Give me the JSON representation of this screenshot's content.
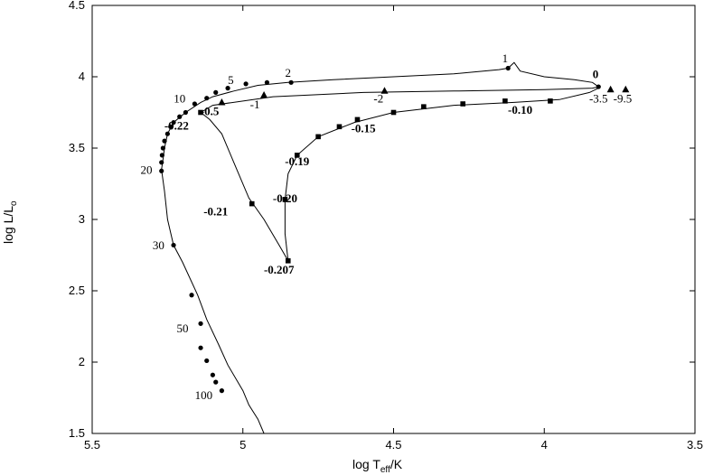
{
  "chart_data": {
    "type": "line",
    "title": "",
    "xlabel": {
      "main": "log T",
      "sub": "eff",
      "tail": "/K"
    },
    "ylabel": {
      "main": "log L/L",
      "sub": "o"
    },
    "xlim": [
      5.5,
      3.5
    ],
    "ylim": [
      1.5,
      4.5
    ],
    "x_reversed": true,
    "grid": false,
    "x_ticks": [
      {
        "value": 5.5,
        "label": "5.5"
      },
      {
        "value": 5.0,
        "label": "5"
      },
      {
        "value": 4.5,
        "label": "4.5"
      },
      {
        "value": 4.0,
        "label": "4"
      },
      {
        "value": 3.5,
        "label": "3.5"
      }
    ],
    "y_ticks": [
      {
        "value": 1.5,
        "label": "1.5"
      },
      {
        "value": 2.0,
        "label": "2"
      },
      {
        "value": 2.5,
        "label": "2.5"
      },
      {
        "value": 3.0,
        "label": "3"
      },
      {
        "value": 3.5,
        "label": "3.5"
      },
      {
        "value": 4.0,
        "label": "4"
      },
      {
        "value": 4.5,
        "label": "4.5"
      }
    ],
    "curves": [
      {
        "id": "main-track",
        "points": [
          [
            4.93,
            1.5
          ],
          [
            4.95,
            1.6
          ],
          [
            4.98,
            1.7
          ],
          [
            5.0,
            1.8
          ],
          [
            5.05,
            1.98
          ],
          [
            5.08,
            2.12
          ],
          [
            5.12,
            2.3
          ],
          [
            5.15,
            2.47
          ],
          [
            5.2,
            2.7
          ],
          [
            5.23,
            2.82
          ],
          [
            5.25,
            3.0
          ],
          [
            5.26,
            3.2
          ],
          [
            5.27,
            3.35
          ],
          [
            5.265,
            3.42
          ],
          [
            5.26,
            3.5
          ],
          [
            5.25,
            3.6
          ],
          [
            5.23,
            3.68
          ],
          [
            5.19,
            3.75
          ],
          [
            5.14,
            3.82
          ],
          [
            5.1,
            3.86
          ],
          [
            5.03,
            3.9
          ],
          [
            4.95,
            3.94
          ],
          [
            4.85,
            3.96
          ],
          [
            4.7,
            3.98
          ],
          [
            4.5,
            4.0
          ],
          [
            4.3,
            4.02
          ],
          [
            4.15,
            4.05
          ],
          [
            4.12,
            4.06
          ],
          [
            4.1,
            4.1
          ],
          [
            4.08,
            4.04
          ],
          [
            4.0,
            4.0
          ],
          [
            3.9,
            3.98
          ],
          [
            3.84,
            3.96
          ],
          [
            3.82,
            3.93
          ],
          [
            3.84,
            3.92
          ],
          [
            4.0,
            3.91
          ],
          [
            4.3,
            3.9
          ],
          [
            4.6,
            3.89
          ],
          [
            4.9,
            3.86
          ],
          [
            5.1,
            3.8
          ],
          [
            5.14,
            3.75
          ],
          [
            5.11,
            3.7
          ],
          [
            5.07,
            3.6
          ],
          [
            5.03,
            3.4
          ],
          [
            4.98,
            3.15
          ],
          [
            4.93,
            3.0
          ],
          [
            4.88,
            2.82
          ],
          [
            4.85,
            2.71
          ],
          [
            4.86,
            2.9
          ],
          [
            4.86,
            3.14
          ],
          [
            4.85,
            3.32
          ],
          [
            4.82,
            3.45
          ],
          [
            4.75,
            3.58
          ],
          [
            4.63,
            3.68
          ],
          [
            4.5,
            3.75
          ],
          [
            4.3,
            3.8
          ],
          [
            4.1,
            3.82
          ],
          [
            3.95,
            3.84
          ],
          [
            3.85,
            3.89
          ],
          [
            3.82,
            3.92
          ]
        ]
      }
    ],
    "series": [
      {
        "name": "",
        "marker": "circle",
        "points": [
          [
            5.07,
            1.8
          ],
          [
            5.09,
            1.86
          ],
          [
            5.1,
            1.91
          ],
          [
            5.12,
            2.01
          ],
          [
            5.14,
            2.1
          ],
          [
            5.14,
            2.27
          ],
          [
            5.17,
            2.47
          ],
          [
            5.23,
            2.82
          ],
          [
            5.27,
            3.34
          ],
          [
            5.27,
            3.4
          ],
          [
            5.268,
            3.45
          ],
          [
            5.265,
            3.5
          ],
          [
            5.26,
            3.55
          ],
          [
            5.25,
            3.6
          ],
          [
            5.24,
            3.65
          ],
          [
            5.23,
            3.68
          ],
          [
            5.21,
            3.72
          ],
          [
            5.19,
            3.75
          ],
          [
            5.16,
            3.81
          ],
          [
            5.12,
            3.85
          ],
          [
            5.09,
            3.89
          ],
          [
            5.05,
            3.92
          ],
          [
            4.99,
            3.95
          ],
          [
            4.92,
            3.96
          ],
          [
            4.84,
            3.96
          ],
          [
            4.12,
            4.06
          ],
          [
            3.82,
            3.93
          ]
        ]
      },
      {
        "name": "",
        "marker": "triangle",
        "points": [
          [
            5.07,
            3.82
          ],
          [
            4.93,
            3.87
          ],
          [
            4.53,
            3.9
          ],
          [
            3.78,
            3.91
          ],
          [
            3.73,
            3.91
          ]
        ]
      },
      {
        "name": "",
        "marker": "square",
        "points": [
          [
            5.14,
            3.75
          ],
          [
            4.97,
            3.11
          ],
          [
            4.85,
            2.71
          ],
          [
            4.86,
            3.14
          ],
          [
            4.82,
            3.45
          ],
          [
            4.75,
            3.58
          ],
          [
            4.68,
            3.65
          ],
          [
            4.62,
            3.7
          ],
          [
            4.5,
            3.75
          ],
          [
            4.4,
            3.79
          ],
          [
            4.27,
            3.81
          ],
          [
            4.13,
            3.83
          ],
          [
            3.98,
            3.83
          ]
        ]
      }
    ],
    "annotations": [
      {
        "text": "1",
        "x": 4.13,
        "y": 4.1,
        "bold": false
      },
      {
        "text": "2",
        "x": 4.85,
        "y": 4.0,
        "bold": false
      },
      {
        "text": "5",
        "x": 5.04,
        "y": 3.95,
        "bold": false
      },
      {
        "text": "10",
        "x": 5.21,
        "y": 3.82,
        "bold": false
      },
      {
        "text": "20",
        "x": 5.32,
        "y": 3.32,
        "bold": false
      },
      {
        "text": "30",
        "x": 5.28,
        "y": 2.79,
        "bold": false
      },
      {
        "text": "50",
        "x": 5.2,
        "y": 2.21,
        "bold": false
      },
      {
        "text": "100",
        "x": 5.13,
        "y": 1.74,
        "bold": false
      },
      {
        "text": "0",
        "x": 3.83,
        "y": 3.99,
        "bold": true
      },
      {
        "text": "-1",
        "x": 4.96,
        "y": 3.78,
        "bold": false
      },
      {
        "text": "-2",
        "x": 4.55,
        "y": 3.82,
        "bold": false
      },
      {
        "text": "-3.5",
        "x": 3.82,
        "y": 3.82,
        "bold": false
      },
      {
        "text": "-9.5",
        "x": 3.74,
        "y": 3.82,
        "bold": false
      },
      {
        "text": "-0.5",
        "x": 5.11,
        "y": 3.73,
        "bold": true
      },
      {
        "text": "-0.22",
        "x": 5.22,
        "y": 3.63,
        "bold": true
      },
      {
        "text": "-0.21",
        "x": 5.09,
        "y": 3.03,
        "bold": true
      },
      {
        "text": "-0.20",
        "x": 4.86,
        "y": 3.12,
        "bold": true
      },
      {
        "text": "-0.207",
        "x": 4.88,
        "y": 2.62,
        "bold": true
      },
      {
        "text": "-0.19",
        "x": 4.82,
        "y": 3.38,
        "bold": true
      },
      {
        "text": "-0.15",
        "x": 4.6,
        "y": 3.61,
        "bold": true
      },
      {
        "text": "-0.10",
        "x": 4.08,
        "y": 3.74,
        "bold": true
      }
    ]
  }
}
